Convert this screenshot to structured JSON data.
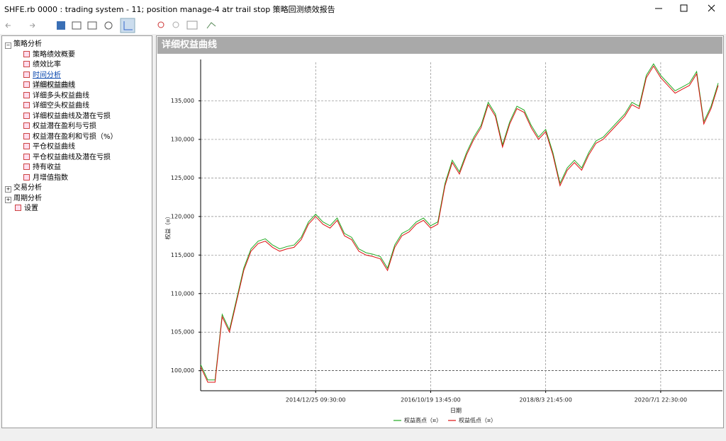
{
  "window": {
    "title": "SHFE.rb 0000 : trading system - 11; position manage-4 atr trail stop 策略回测绩效报告"
  },
  "tree": [
    {
      "label": "策略分析",
      "children": [
        "策略绩效概要",
        "绩效比率",
        "时间分析",
        "详细权益曲线",
        "详细多头权益曲线",
        "详细空头权益曲线",
        "详细权益曲线及潜在亏损",
        "权益潜在盈利与亏损",
        "权益潜在盈利和亏损（%）",
        "平仓权益曲线",
        "平仓权益曲线及潜在亏损",
        "持有收益",
        "月增值指数"
      ]
    },
    {
      "label": "交易分析",
      "children": []
    },
    {
      "label": "周期分析",
      "children": []
    },
    {
      "label": "设置",
      "children": []
    }
  ],
  "panel": {
    "title": "详细权益曲线"
  },
  "chart_data": {
    "type": "line",
    "xlabel": "日期",
    "ylabel": "权益（¤）",
    "categories": [
      null,
      null,
      null,
      null,
      null,
      null,
      null,
      null,
      null,
      null,
      null,
      null,
      null,
      null,
      null,
      null,
      "2014/12/25 09:30:00",
      null,
      null,
      null,
      null,
      null,
      null,
      null,
      null,
      null,
      null,
      null,
      null,
      null,
      null,
      null,
      "2016/10/19 13:45:00",
      null,
      null,
      null,
      null,
      null,
      null,
      null,
      null,
      null,
      null,
      null,
      null,
      null,
      null,
      null,
      "2018/8/3 21:45:00",
      null,
      null,
      null,
      null,
      null,
      null,
      null,
      null,
      null,
      null,
      null,
      null,
      null,
      null,
      null,
      "2020/7/1 22:30:00",
      null,
      null,
      null,
      null,
      null,
      null,
      null,
      null
    ],
    "series": [
      {
        "name": "权益高点（¤）",
        "color": "#22aa22",
        "values": [
          100800,
          98800,
          98800,
          107300,
          105300,
          109300,
          113300,
          115800,
          116800,
          117100,
          116300,
          115800,
          116100,
          116300,
          117300,
          119300,
          120300,
          119300,
          118800,
          119800,
          117800,
          117300,
          115800,
          115300,
          115100,
          114800,
          113300,
          116300,
          117800,
          118300,
          119300,
          119800,
          118800,
          119300,
          124300,
          127300,
          125800,
          128300,
          130300,
          131800,
          134800,
          133300,
          129300,
          132300,
          134300,
          133800,
          131800,
          130300,
          131300,
          128300,
          124300,
          126300,
          127300,
          126300,
          128300,
          129800,
          130300,
          131300,
          132300,
          133300,
          134800,
          134300,
          138300,
          139800,
          138300,
          137300,
          136300,
          136800,
          137300,
          138800,
          132300,
          134300,
          137300
        ]
      },
      {
        "name": "权益低点（¤）",
        "color": "#dd1111",
        "values": [
          100500,
          98500,
          98500,
          107000,
          105000,
          109000,
          113000,
          115500,
          116500,
          116800,
          116000,
          115500,
          115800,
          116000,
          117000,
          119000,
          120000,
          119000,
          118500,
          119500,
          117500,
          117000,
          115500,
          115000,
          114800,
          114500,
          113000,
          116000,
          117500,
          118000,
          119000,
          119500,
          118500,
          119000,
          124000,
          127000,
          125500,
          128000,
          130000,
          131500,
          134500,
          133000,
          129000,
          132000,
          134000,
          133500,
          131500,
          130000,
          131000,
          128000,
          124000,
          126000,
          127000,
          126000,
          128000,
          129500,
          130000,
          131000,
          132000,
          133000,
          134500,
          134000,
          138000,
          139500,
          138000,
          137000,
          136000,
          136500,
          137000,
          138500,
          132000,
          134000,
          137000
        ]
      }
    ],
    "ylim": [
      97400,
      140000
    ],
    "yticks": [
      {
        "value": 100000,
        "label": "100,000"
      },
      {
        "value": 105000,
        "label": "105,000"
      },
      {
        "value": 110000,
        "label": "110,000"
      },
      {
        "value": 115000,
        "label": "115,000"
      },
      {
        "value": 120000,
        "label": "120,000"
      },
      {
        "value": 125000,
        "label": "125,000"
      },
      {
        "value": 130000,
        "label": "130,000"
      },
      {
        "value": 135000,
        "label": "135,000"
      }
    ],
    "grid": true
  }
}
